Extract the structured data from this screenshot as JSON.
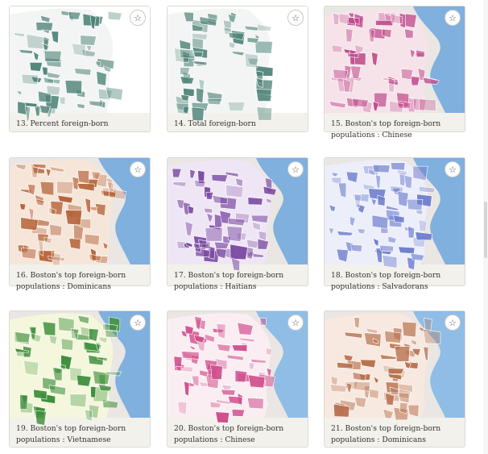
{
  "cards": [
    {
      "caption": "13. Percent foreign-born",
      "fill": "#4f8478",
      "base": "#f3f5f4",
      "water": "#ffffff",
      "icon": "star-outline-icon"
    },
    {
      "caption": "14. Total foreign-born",
      "fill": "#4f8478",
      "base": "#f3f5f4",
      "water": "#ffffff",
      "icon": "star-outline-icon"
    },
    {
      "caption": "15. Boston's top foreign-born populations : Chinese",
      "fill": "#c04a8b",
      "base": "#f6e3ea",
      "water": "#7fb0de",
      "icon": "star-outline-icon"
    },
    {
      "caption": "16. Boston's top foreign-born populations : Dominicans",
      "fill": "#b5643a",
      "base": "#f6e6da",
      "water": "#7fb0de",
      "icon": "star-outline-icon"
    },
    {
      "caption": "17. Boston's top foreign-born populations : Haitians",
      "fill": "#7a4aa2",
      "base": "#efe6f5",
      "water": "#7fb0de",
      "icon": "star-outline-icon"
    },
    {
      "caption": "18. Boston's top foreign-born populations : Salvadorans",
      "fill": "#6f7fcf",
      "base": "#eceefa",
      "water": "#7fb0de",
      "icon": "star-outline-icon"
    },
    {
      "caption": "19. Boston's top foreign-born populations : Vietnamese",
      "fill": "#3e8f3a",
      "base": "#f4f7dc",
      "water": "#7fb0de",
      "icon": "star-outline-icon"
    },
    {
      "caption": "20. Boston's top foreign-born populations : Chinese",
      "fill": "#d0508e",
      "base": "#fbeef2",
      "water": "#8fbde6",
      "icon": "star-outline-icon"
    },
    {
      "caption": "21. Boston's top foreign-born populations : Dominicans",
      "fill": "#b8714f",
      "base": "#f7e9df",
      "water": "#8fbde6",
      "icon": "star-outline-icon"
    }
  ],
  "star_glyph": "☆"
}
